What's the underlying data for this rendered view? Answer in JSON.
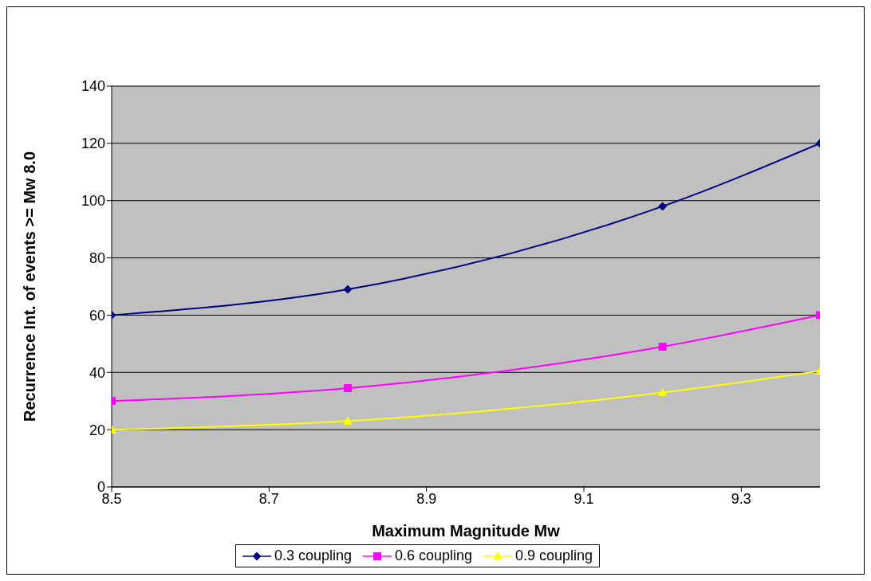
{
  "chart_data": {
    "type": "line",
    "xlabel": "Maximum Magnitude Mw",
    "ylabel": "Recurrence Int. of  events >= Mw 8.0",
    "x": [
      8.5,
      8.8,
      9.2,
      9.4
    ],
    "series": [
      {
        "name": "0.3 coupling",
        "color": "#000080",
        "marker": "diamond",
        "values": [
          60,
          69,
          98,
          120
        ]
      },
      {
        "name": "0.6 coupling",
        "color": "#ff00ff",
        "marker": "square",
        "values": [
          30,
          34.5,
          49,
          60
        ]
      },
      {
        "name": "0.9 coupling",
        "color": "#ffff00",
        "marker": "triangle",
        "values": [
          20,
          23,
          33,
          40.5
        ]
      }
    ],
    "xlim": [
      8.5,
      9.4
    ],
    "xticks": [
      8.5,
      8.7,
      8.9,
      9.1,
      9.3
    ],
    "ylim": [
      0,
      140
    ],
    "yticks": [
      0,
      20,
      40,
      60,
      80,
      100,
      120,
      140
    ],
    "grid": "y",
    "legend": "bottom"
  }
}
